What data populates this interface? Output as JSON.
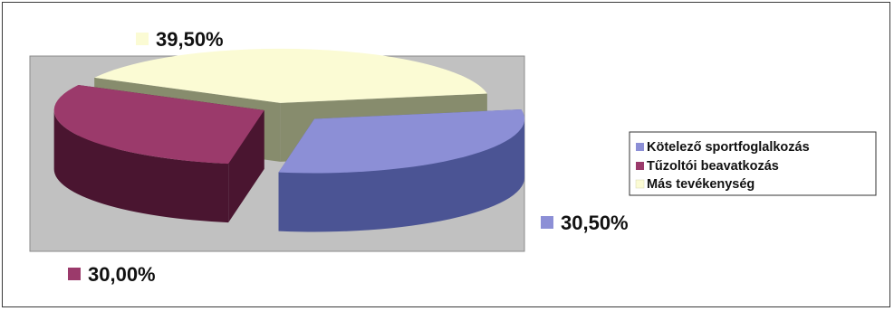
{
  "chart_data": {
    "type": "pie",
    "style": "3d-exploded",
    "title": "",
    "slices": [
      {
        "label": "Kötelező sportfoglalkozás",
        "value": 30.5,
        "display": "30,50%",
        "color": "#8c8fd6",
        "side_color": "#4b5494"
      },
      {
        "label": "Tűzoltói beavatkozás",
        "value": 30.0,
        "display": "30,00%",
        "color": "#9b3a6b",
        "side_color": "#4a1530"
      },
      {
        "label": "Más tevékenység",
        "value": 39.5,
        "display": "39,50%",
        "color": "#fbfbd4",
        "side_color": "#878c6d"
      }
    ],
    "legend_position": "right",
    "plot_background": "#c1c1c1"
  }
}
